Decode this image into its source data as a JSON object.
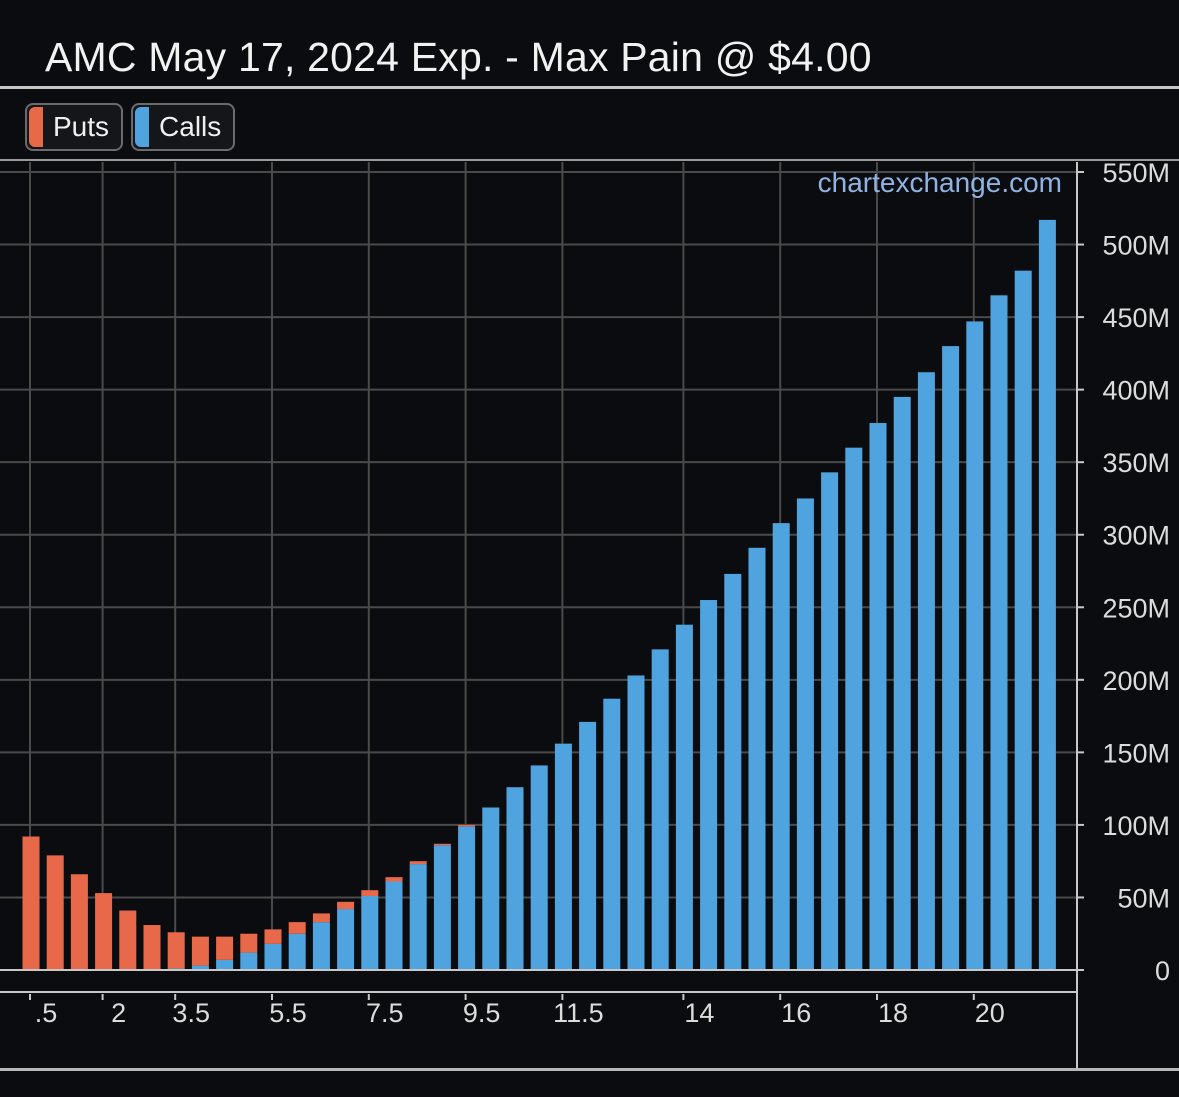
{
  "title": "AMC May 17, 2024 Exp. - Max Pain @ $4.00",
  "legend": [
    {
      "label": "Puts",
      "color": "#e8694a"
    },
    {
      "label": "Calls",
      "color": "#4fa3de"
    }
  ],
  "watermark": "chartexchange.com",
  "colors": {
    "background": "#0b0c10",
    "grid": "#4a4a4a",
    "text": "#dcdcdc",
    "axis": "#c8c8c8"
  },
  "chart_data": {
    "type": "bar",
    "stacked": true,
    "title": "AMC May 17, 2024 Exp. - Max Pain @ $4.00",
    "xlabel": "",
    "ylabel": "",
    "ylim": [
      0,
      550
    ],
    "y_unit": "M",
    "y_axis_position": "right",
    "grid": true,
    "legend_position": "top-left",
    "y_ticks": [
      "0",
      "50M",
      "100M",
      "150M",
      "200M",
      "250M",
      "300M",
      "350M",
      "400M",
      "450M",
      "500M",
      "550M"
    ],
    "x_tick_labels": [
      ".5",
      "2",
      "3.5",
      "5.5",
      "7.5",
      "9.5",
      "11.5",
      "14",
      "16",
      "18",
      "20"
    ],
    "x_tick_label_bar_index": [
      0,
      3,
      6,
      10,
      14,
      18,
      22,
      27,
      31,
      35,
      39
    ],
    "series": [
      {
        "name": "Puts",
        "color": "#e8694a",
        "values": [
          92,
          79,
          66,
          53,
          41,
          31,
          25,
          20,
          16,
          13,
          10,
          8,
          6,
          5,
          4,
          3,
          2,
          1,
          1,
          0,
          0,
          0,
          0,
          0,
          0,
          0,
          0,
          0,
          0,
          0,
          0,
          0,
          0,
          0,
          0,
          0,
          0,
          0,
          0,
          0,
          0,
          0,
          0
        ]
      },
      {
        "name": "Calls",
        "color": "#4fa3de",
        "values": [
          0,
          0,
          0,
          0,
          0,
          0,
          1,
          3,
          7,
          12,
          18,
          25,
          33,
          42,
          51,
          61,
          73,
          86,
          99,
          112,
          126,
          141,
          156,
          171,
          187,
          203,
          221,
          238,
          255,
          273,
          291,
          308,
          325,
          343,
          360,
          377,
          395,
          412,
          430,
          447,
          465,
          482,
          517
        ]
      }
    ]
  }
}
